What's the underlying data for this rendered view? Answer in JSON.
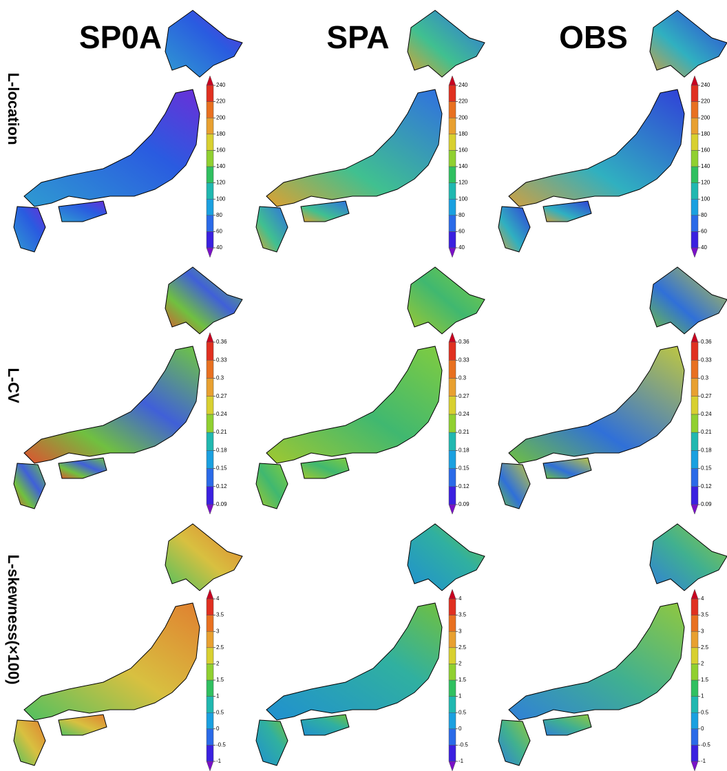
{
  "columns": [
    "SP0A",
    "SPA",
    "OBS"
  ],
  "rows": [
    {
      "label": "L-location",
      "ticks": [
        40,
        60,
        80,
        100,
        120,
        140,
        160,
        180,
        200,
        220,
        240
      ]
    },
    {
      "label": "L-CV",
      "ticks": [
        0.09,
        0.12,
        0.15,
        0.18,
        0.21,
        0.24,
        0.27,
        0.3,
        0.33,
        0.36
      ]
    },
    {
      "label": "L-skewness(×100)",
      "ticks": [
        -1,
        -0.5,
        0,
        0.5,
        1,
        1.5,
        2,
        2.5,
        3,
        3.5,
        4
      ]
    }
  ]
}
